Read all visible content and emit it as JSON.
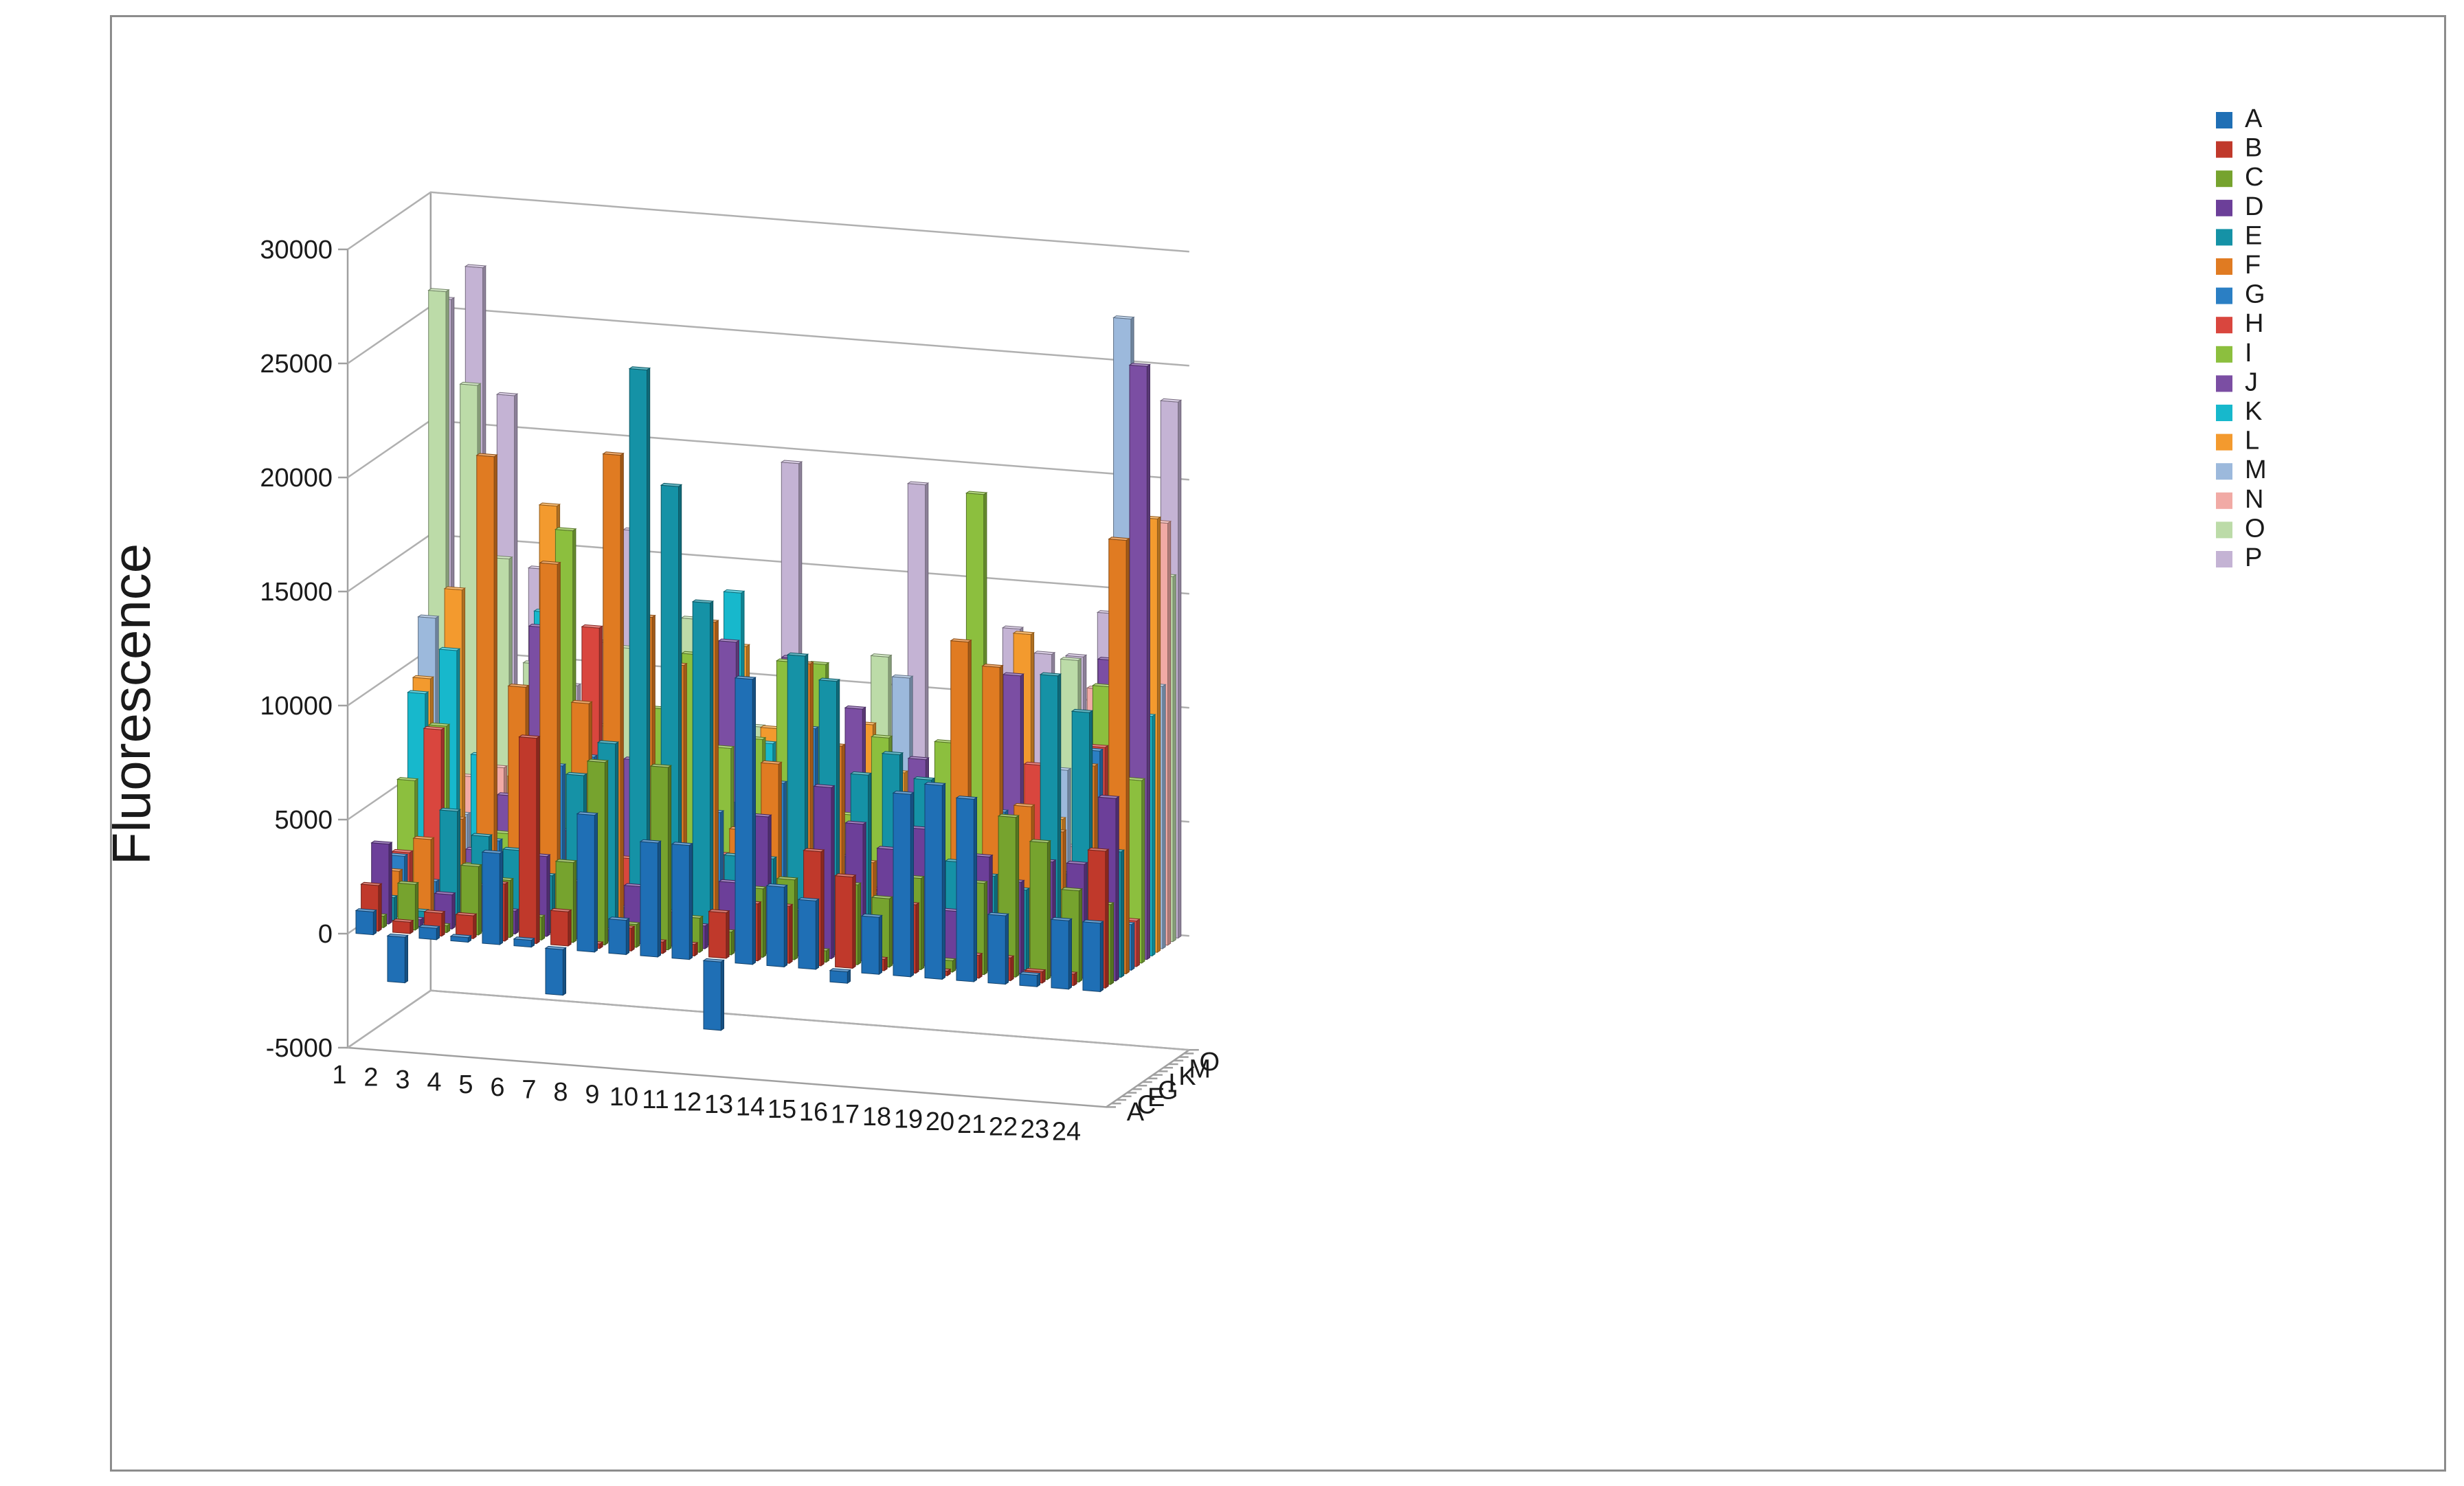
{
  "chart_data": {
    "type": "bar",
    "subtype": "3d-column",
    "title": "",
    "ylabel": "Fluorescence",
    "xlabel": "",
    "ylim": [
      -5000,
      30000
    ],
    "y_ticks": [
      -5000,
      0,
      5000,
      10000,
      15000,
      20000,
      25000,
      30000
    ],
    "y_tick_labels": [
      "-5000",
      "0",
      "5000",
      "10000",
      "15000",
      "20000",
      "25000",
      "30000"
    ],
    "grid": true,
    "legend_position": "right",
    "categories": [
      "1",
      "2",
      "3",
      "4",
      "5",
      "6",
      "7",
      "8",
      "9",
      "10",
      "11",
      "12",
      "13",
      "14",
      "15",
      "16",
      "17",
      "18",
      "19",
      "20",
      "21",
      "22",
      "23",
      "24"
    ],
    "depth_axis_labels": [
      "A",
      "C",
      "E",
      "G",
      "I",
      "K",
      "M",
      "O"
    ],
    "series": [
      {
        "name": "A",
        "color": "#1f6fb5",
        "values": [
          1000,
          -2000,
          500,
          200,
          4000,
          300,
          -2000,
          6000,
          1500,
          5000,
          5000,
          -3000,
          12500,
          3500,
          3000,
          -500,
          2500,
          8000,
          8500,
          8000,
          3000,
          500,
          3000,
          3000
        ]
      },
      {
        "name": "B",
        "color": "#c0392b",
        "values": [
          2000,
          500,
          1000,
          1000,
          2500,
          9000,
          1500,
          200,
          1000,
          500,
          500,
          2000,
          2500,
          2500,
          5000,
          4000,
          500,
          3000,
          200,
          1000,
          1000,
          500,
          500,
          6000
        ]
      },
      {
        "name": "C",
        "color": "#76a32e",
        "values": [
          500,
          2000,
          300,
          3000,
          2500,
          1000,
          3500,
          8000,
          1000,
          8000,
          1500,
          1000,
          3000,
          3500,
          500,
          3500,
          3000,
          4000,
          500,
          4000,
          7000,
          6000,
          4000,
          3500
        ]
      },
      {
        "name": "D",
        "color": "#6c3f99",
        "values": [
          3500,
          300,
          1500,
          2000,
          1000,
          3500,
          2500,
          500,
          2500,
          1500,
          1000,
          3000,
          6000,
          2000,
          7500,
          6000,
          5000,
          6000,
          2500,
          5000,
          4000,
          5000,
          5000,
          8000
        ]
      },
      {
        "name": "E",
        "color": "#1592a6",
        "values": [
          1000,
          500,
          5000,
          4000,
          3500,
          2500,
          7000,
          8500,
          25000,
          20000,
          15000,
          4000,
          4000,
          13000,
          12000,
          8000,
          9000,
          8000,
          4500,
          4000,
          3500,
          13000,
          11500,
          5500
        ]
      },
      {
        "name": "F",
        "color": "#e07b22",
        "values": [
          2000,
          3500,
          4500,
          20500,
          10500,
          16000,
          10000,
          21000,
          14000,
          12000,
          14000,
          5000,
          8000,
          12500,
          9000,
          4000,
          5500,
          2500,
          14000,
          13000,
          7000,
          6000,
          9000,
          19000
        ]
      },
      {
        "name": "G",
        "color": "#2b7fc4",
        "values": [
          2500,
          1500,
          500,
          3500,
          5500,
          7000,
          7500,
          1000,
          1500,
          2500,
          5500,
          6000,
          7000,
          9500,
          4000,
          2500,
          1500,
          3500,
          5500,
          6500,
          3500,
          4000,
          9500,
          2000
        ]
      },
      {
        "name": "H",
        "color": "#d9463e",
        "values": [
          2500,
          8000,
          500,
          1000,
          1000,
          4000,
          13000,
          3000,
          4500,
          2500,
          3500,
          500,
          1000,
          3500,
          1500,
          2500,
          1500,
          1000,
          1000,
          2000,
          8500,
          1500,
          9500,
          2000
        ]
      },
      {
        "name": "I",
        "color": "#8cbf3e",
        "values": [
          5500,
          8000,
          2000,
          3500,
          7500,
          17000,
          5000,
          2000,
          9500,
          12000,
          8000,
          8500,
          12000,
          12000,
          5500,
          9000,
          6000,
          9000,
          20000,
          5000,
          2500,
          1000,
          12000,
          8000
        ]
      },
      {
        "name": "J",
        "color": "#7b4ea3",
        "values": [
          2000,
          1500,
          2500,
          5000,
          12500,
          8500,
          4000,
          7000,
          9000,
          2500,
          12500,
          2000,
          12000,
          5500,
          10000,
          3500,
          8000,
          2500,
          7500,
          12000,
          2500,
          1500,
          13000,
          26000
        ]
      },
      {
        "name": "K",
        "color": "#17b8cc",
        "values": [
          9000,
          11000,
          6500,
          3500,
          13000,
          7500,
          2000,
          3000,
          8500,
          2500,
          14500,
          8000,
          3500,
          5000,
          3000,
          4000,
          6000,
          4000,
          4500,
          3000,
          3000,
          2500,
          3500,
          10500
        ]
      },
      {
        "name": "L",
        "color": "#f39a2e",
        "values": [
          9500,
          13500,
          3500,
          5500,
          17500,
          2000,
          3500,
          6500,
          11000,
          4500,
          12000,
          8500,
          11000,
          7500,
          9000,
          7000,
          6000,
          4000,
          8000,
          13500,
          5500,
          3000,
          6500,
          19000
        ]
      },
      {
        "name": "M",
        "color": "#9cb9dc",
        "values": [
          12000,
          3500,
          2500,
          4000,
          7500,
          4000,
          3000,
          5000,
          3500,
          4000,
          2500,
          6500,
          3000,
          4000,
          4500,
          11000,
          3000,
          5000,
          4000,
          3000,
          7500,
          6000,
          27500,
          11500
        ]
      },
      {
        "name": "N",
        "color": "#f1aaa5",
        "values": [
          2500,
          5000,
          5500,
          3000,
          11000,
          7500,
          4500,
          6000,
          3500,
          3000,
          7500,
          4000,
          4000,
          7500,
          3000,
          6500,
          3000,
          4000,
          8500,
          3000,
          4000,
          11000,
          9000,
          18500
        ]
      },
      {
        "name": "O",
        "color": "#bcdba8",
        "values": [
          26000,
          22000,
          14500,
          10000,
          4000,
          7500,
          11000,
          8000,
          12500,
          5000,
          8000,
          4500,
          4000,
          5000,
          11500,
          5500,
          4000,
          7500,
          9000,
          4000,
          12000,
          7500,
          4500,
          16000
        ]
      },
      {
        "name": "P",
        "color": "#c4b3d4",
        "values": [
          25500,
          27000,
          21500,
          14000,
          9000,
          11000,
          16000,
          7500,
          8000,
          9000,
          5500,
          19500,
          7500,
          6000,
          6000,
          19000,
          4000,
          4000,
          13000,
          12000,
          12000,
          14000,
          6500,
          23500
        ]
      }
    ]
  }
}
